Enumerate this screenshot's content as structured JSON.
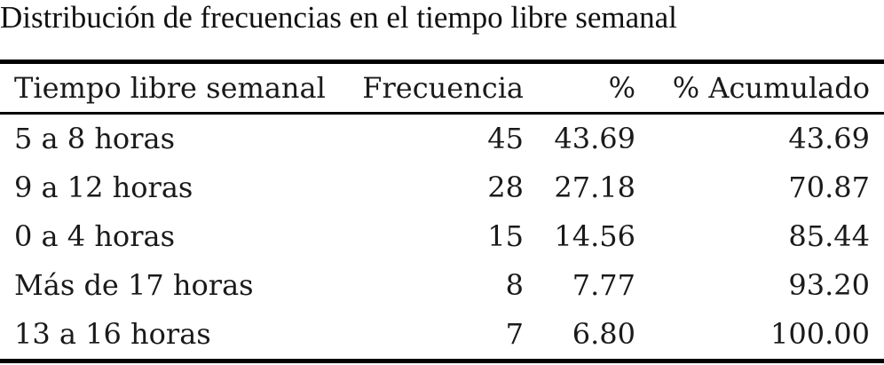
{
  "caption": "Distribución de frecuencias en el tiempo libre semanal",
  "columns": [
    "Tiempo libre semanal",
    "Frecuencia",
    "%",
    "% Acumulado"
  ],
  "rows": [
    [
      "5 a 8 horas",
      "45",
      "43.69",
      "43.69"
    ],
    [
      "9 a 12 horas",
      "28",
      "27.18",
      "70.87"
    ],
    [
      "0 a 4 horas",
      "15",
      "14.56",
      "85.44"
    ],
    [
      "Más de 17 horas",
      "8",
      "7.77",
      "93.20"
    ],
    [
      "13 a 16 horas",
      "7",
      "6.80",
      "100.00"
    ]
  ],
  "chart_data": {
    "type": "table",
    "title": "Distribución de frecuencias en el tiempo libre semanal",
    "columns": [
      "Tiempo libre semanal",
      "Frecuencia",
      "%",
      "% Acumulado"
    ],
    "rows": [
      {
        "category": "5 a 8 horas",
        "frecuencia": 45,
        "porcentaje": 43.69,
        "acumulado": 43.69
      },
      {
        "category": "9 a 12 horas",
        "frecuencia": 28,
        "porcentaje": 27.18,
        "acumulado": 70.87
      },
      {
        "category": "0 a 4 horas",
        "frecuencia": 15,
        "porcentaje": 14.56,
        "acumulado": 85.44
      },
      {
        "category": "Más de 17 horas",
        "frecuencia": 8,
        "porcentaje": 7.77,
        "acumulado": 93.2
      },
      {
        "category": "13 a 16 horas",
        "frecuencia": 7,
        "porcentaje": 6.8,
        "acumulado": 100.0
      }
    ]
  }
}
